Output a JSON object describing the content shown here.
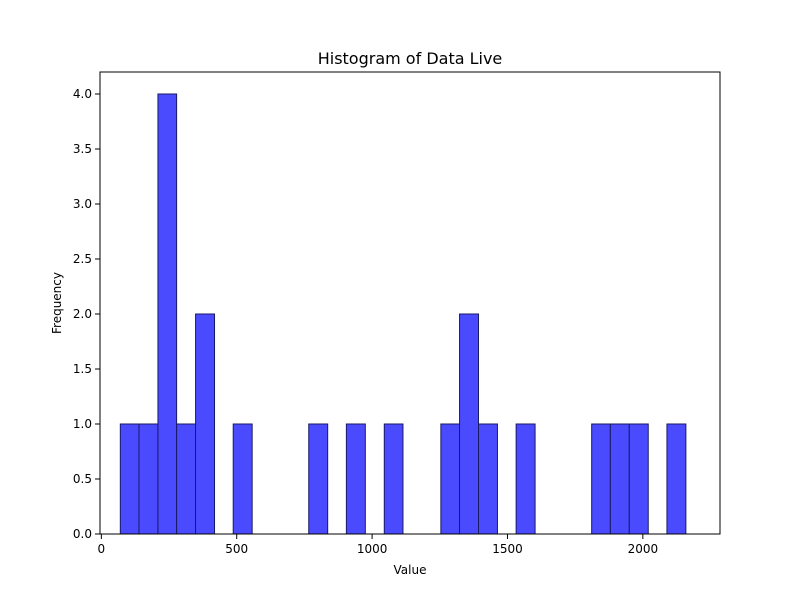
{
  "chart_data": {
    "type": "bar",
    "title": "Histogram of Data Live",
    "xlabel": "Value",
    "ylabel": "Frequency",
    "xlim": [
      -5,
      2285
    ],
    "ylim": [
      0,
      4.2
    ],
    "xticks": [
      0,
      500,
      1000,
      1500,
      2000
    ],
    "yticks": [
      0.0,
      0.5,
      1.0,
      1.5,
      2.0,
      2.5,
      3.0,
      3.5,
      4.0
    ],
    "grid": false,
    "bar_color": "#4a4aff",
    "edge_color": "#1a1a66",
    "bins": [
      {
        "start": 70,
        "end": 139,
        "count": 1
      },
      {
        "start": 139,
        "end": 209,
        "count": 1
      },
      {
        "start": 209,
        "end": 278,
        "count": 4
      },
      {
        "start": 278,
        "end": 348,
        "count": 1
      },
      {
        "start": 348,
        "end": 418,
        "count": 2
      },
      {
        "start": 487,
        "end": 557,
        "count": 1
      },
      {
        "start": 766,
        "end": 836,
        "count": 1
      },
      {
        "start": 905,
        "end": 975,
        "count": 1
      },
      {
        "start": 1045,
        "end": 1114,
        "count": 1
      },
      {
        "start": 1254,
        "end": 1323,
        "count": 1
      },
      {
        "start": 1323,
        "end": 1393,
        "count": 2
      },
      {
        "start": 1393,
        "end": 1463,
        "count": 1
      },
      {
        "start": 1532,
        "end": 1602,
        "count": 1
      },
      {
        "start": 1811,
        "end": 1880,
        "count": 1
      },
      {
        "start": 1880,
        "end": 1950,
        "count": 1
      },
      {
        "start": 1950,
        "end": 2020,
        "count": 1
      },
      {
        "start": 2089,
        "end": 2159,
        "count": 1
      }
    ]
  }
}
